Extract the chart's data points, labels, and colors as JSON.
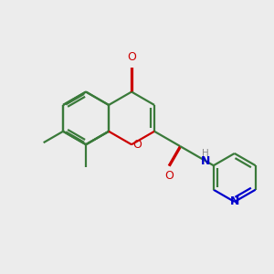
{
  "bg_color": "#ececec",
  "bond_color": "#3a7a3a",
  "oxygen_color": "#cc0000",
  "nitrogen_color": "#0000cc",
  "lw": 1.6,
  "dbo": 0.018,
  "figsize": [
    3.0,
    3.0
  ],
  "dpi": 100,
  "xlim": [
    -0.5,
    4.5
  ],
  "ylim": [
    -1.2,
    2.2
  ]
}
